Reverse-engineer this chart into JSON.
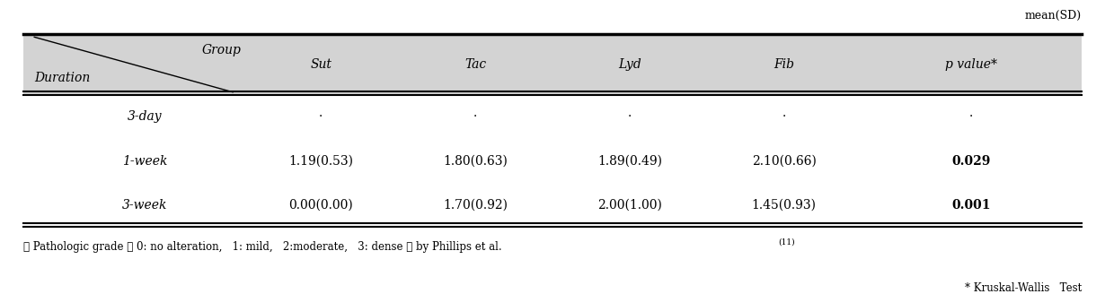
{
  "mean_sd_label": "mean(SD)",
  "header_group": "Group",
  "header_duration": "Duration",
  "columns": [
    "Sut",
    "Tac",
    "Lyd",
    "Fib",
    "p value*"
  ],
  "rows": [
    {
      "duration": "3-day",
      "values": [
        "·",
        "·",
        "·",
        "·",
        "·"
      ],
      "p_bold": false
    },
    {
      "duration": "1-week",
      "values": [
        "1.19(0.53)",
        "1.80(0.63)",
        "1.89(0.49)",
        "2.10(0.66)",
        "0.029"
      ],
      "p_bold": true
    },
    {
      "duration": "3-week",
      "values": [
        "0.00(0.00)",
        "1.70(0.92)",
        "2.00(1.00)",
        "1.45(0.93)",
        "0.001"
      ],
      "p_bold": true
    }
  ],
  "footnote1": "※ Pathologic grade （ 0: no alteration,   1: mild,   2:moderate,   3: dense ） by Phillips et al.",
  "footnote1_superscript": "(11)",
  "footnote2": "* Kruskal-Wallis   Test",
  "header_bg": "#d3d3d3",
  "fig_width": 12.3,
  "fig_height": 3.28,
  "dpi": 100
}
